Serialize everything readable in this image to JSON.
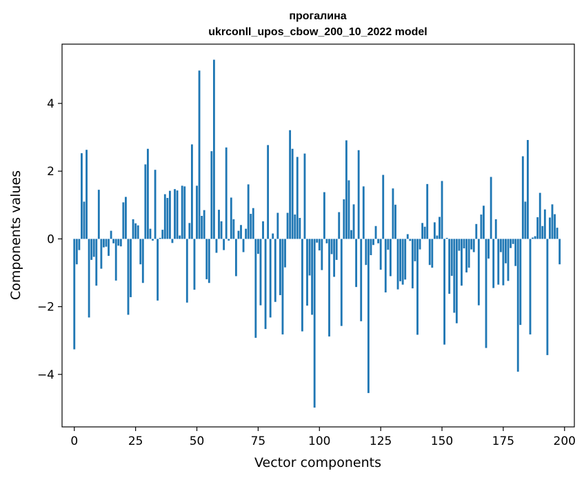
{
  "chart_data": {
    "type": "bar",
    "title_line1": "прогалина",
    "title_line2": "ukrconll_upos_cbow_200_10_2022 model",
    "xlabel": "Vector components",
    "ylabel": "Components values",
    "xlim": [
      -5,
      204
    ],
    "ylim": [
      -5.55,
      5.75
    ],
    "xticks": [
      0,
      25,
      50,
      75,
      100,
      125,
      150,
      175,
      200
    ],
    "xtick_labels": [
      "0",
      "25",
      "50",
      "75",
      "100",
      "125",
      "150",
      "175",
      "200"
    ],
    "yticks": [
      -4,
      -2,
      0,
      2,
      4
    ],
    "ytick_labels": [
      "−4",
      "−2",
      "0",
      "2",
      "4"
    ],
    "color": "#1f77b4",
    "grid": false,
    "values": [
      -3.26,
      -0.75,
      -0.33,
      2.53,
      1.1,
      2.63,
      -2.32,
      -0.62,
      -0.53,
      -1.38,
      1.45,
      -0.88,
      -0.25,
      -0.23,
      -0.5,
      0.24,
      -0.13,
      -1.23,
      -0.2,
      -0.22,
      1.08,
      1.24,
      -2.24,
      -1.72,
      0.58,
      0.46,
      0.4,
      -0.75,
      -1.3,
      2.2,
      2.66,
      0.3,
      -0.05,
      2.04,
      -1.82,
      0.03,
      0.27,
      1.32,
      1.21,
      1.42,
      -0.12,
      1.47,
      1.43,
      0.1,
      1.57,
      1.55,
      -1.88,
      0.47,
      2.79,
      -1.5,
      1.57,
      4.97,
      0.68,
      0.85,
      -1.19,
      -1.3,
      2.59,
      5.29,
      -0.41,
      0.86,
      0.52,
      -0.33,
      2.7,
      -0.05,
      1.22,
      0.58,
      -1.1,
      0.24,
      0.41,
      -0.39,
      0.3,
      1.61,
      0.74,
      0.91,
      -2.92,
      -0.44,
      -1.96,
      0.52,
      -2.66,
      2.77,
      -2.32,
      0.16,
      -1.86,
      0.77,
      -1.66,
      -2.82,
      -0.84,
      0.77,
      3.21,
      2.66,
      0.72,
      2.42,
      0.62,
      -2.73,
      2.52,
      -1.97,
      -1.08,
      -2.24,
      -4.98,
      -0.11,
      -0.34,
      -0.92,
      1.38,
      -0.13,
      -2.88,
      -0.45,
      -1.12,
      -0.62,
      0.79,
      -2.57,
      1.17,
      2.91,
      1.73,
      0.26,
      1.02,
      -1.42,
      2.62,
      -2.43,
      1.55,
      -0.77,
      -4.55,
      -0.48,
      -0.18,
      0.38,
      -0.13,
      -0.91,
      1.89,
      -1.58,
      -0.32,
      -1.1,
      1.49,
      1.01,
      -1.49,
      -1.25,
      -1.35,
      -1.2,
      0.14,
      -0.06,
      -1.46,
      -0.66,
      -2.83,
      -0.31,
      0.47,
      0.36,
      1.62,
      -0.77,
      -0.85,
      0.49,
      0.1,
      0.65,
      1.71,
      -3.12,
      0.03,
      -1.62,
      -1.09,
      -2.18,
      -2.49,
      -0.35,
      -1.38,
      -0.28,
      -0.99,
      -0.85,
      -0.31,
      -0.39,
      0.44,
      -1.96,
      0.72,
      0.98,
      -3.22,
      -0.58,
      1.83,
      -1.45,
      0.58,
      -1.35,
      -0.39,
      -1.37,
      -0.72,
      -1.24,
      -0.27,
      -0.15,
      -0.8,
      -3.92,
      -2.54,
      2.44,
      1.1,
      2.92,
      -2.82,
      0.04,
      0.08,
      0.64,
      1.36,
      0.38,
      0.87,
      -3.43,
      0.63,
      1.02,
      0.73,
      0.33,
      -0.75
    ]
  }
}
